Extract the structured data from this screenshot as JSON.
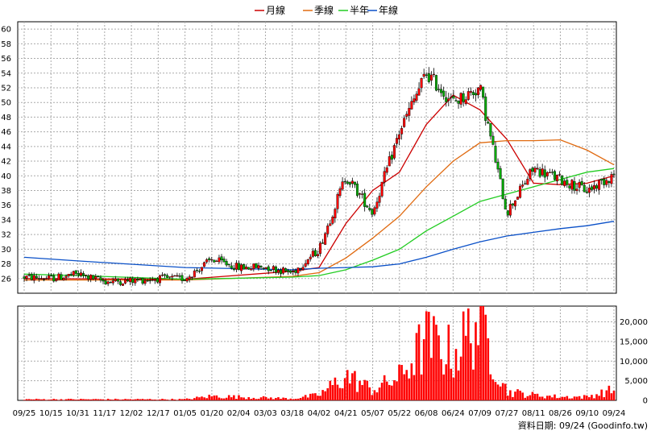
{
  "chart_data": {
    "type": "candlestick",
    "legend": [
      {
        "name": "月線",
        "color": "#cc0000"
      },
      {
        "name": "季線",
        "color": "#e06a10"
      },
      {
        "name": "半年",
        "color": "#22cc22"
      },
      {
        "name": "年線",
        "color": "#0a50c8"
      }
    ],
    "price_axis": {
      "min": 24,
      "max": 61,
      "ticks": [
        26,
        28,
        30,
        32,
        34,
        36,
        38,
        40,
        42,
        44,
        46,
        48,
        50,
        52,
        54,
        56,
        58,
        60
      ]
    },
    "volume_axis": {
      "min": 0,
      "max": 24000,
      "ticks": [
        0,
        5000,
        10000,
        15000,
        20000
      ],
      "tick_labels": [
        "0",
        "5,000",
        "10,000",
        "15,000",
        "20,000"
      ]
    },
    "x_tick_labels": [
      "09/25",
      "10/15",
      "10/31",
      "11/17",
      "12/02",
      "12/17",
      "01/05",
      "01/20",
      "02/04",
      "03/03",
      "03/18",
      "04/02",
      "04/21",
      "05/07",
      "05/22",
      "06/08",
      "06/24",
      "07/09",
      "07/27",
      "08/11",
      "08/26",
      "09/10",
      "09/24"
    ],
    "price_keyframes": [
      {
        "x": "09/25",
        "close": 26.2
      },
      {
        "x": "10/15",
        "close": 26.0
      },
      {
        "x": "10/31",
        "close": 26.6
      },
      {
        "x": "11/17",
        "close": 25.6
      },
      {
        "x": "12/02",
        "close": 25.7
      },
      {
        "x": "12/17",
        "close": 26.0
      },
      {
        "x": "01/05",
        "close": 26.0
      },
      {
        "x": "01/20",
        "close": 28.6
      },
      {
        "x": "02/04",
        "close": 27.5
      },
      {
        "x": "03/03",
        "close": 27.6
      },
      {
        "x": "03/18",
        "close": 26.8
      },
      {
        "x": "04/02",
        "close": 30.0
      },
      {
        "x": "04/21",
        "close": 40.0
      },
      {
        "x": "05/07",
        "close": 35.0
      },
      {
        "x": "05/22",
        "close": 46.0
      },
      {
        "x": "06/08",
        "close": 54.0
      },
      {
        "x": "06/24",
        "close": 50.0
      },
      {
        "x": "07/09",
        "close": 52.0
      },
      {
        "x": "07/27",
        "close": 35.0
      },
      {
        "x": "08/11",
        "close": 41.0
      },
      {
        "x": "08/26",
        "close": 39.5
      },
      {
        "x": "09/10",
        "close": 38.0
      },
      {
        "x": "09/24",
        "close": 40.2
      }
    ],
    "moving_averages": {
      "月線": [
        {
          "x": "09/25",
          "y": 26.0
        },
        {
          "x": "01/05",
          "y": 25.9
        },
        {
          "x": "03/18",
          "y": 27.0
        },
        {
          "x": "04/02",
          "y": 27.5
        },
        {
          "x": "04/21",
          "y": 33.5
        },
        {
          "x": "05/07",
          "y": 38.0
        },
        {
          "x": "05/22",
          "y": 40.5
        },
        {
          "x": "06/08",
          "y": 47.0
        },
        {
          "x": "06/24",
          "y": 51.0
        },
        {
          "x": "07/09",
          "y": 49.0
        },
        {
          "x": "07/27",
          "y": 45.0
        },
        {
          "x": "08/11",
          "y": 39.0
        },
        {
          "x": "08/26",
          "y": 38.8
        },
        {
          "x": "09/10",
          "y": 39.0
        },
        {
          "x": "09/24",
          "y": 40.0
        }
      ],
      "季線": [
        {
          "x": "09/25",
          "y": 25.8
        },
        {
          "x": "01/05",
          "y": 25.8
        },
        {
          "x": "03/18",
          "y": 26.3
        },
        {
          "x": "04/02",
          "y": 26.8
        },
        {
          "x": "04/21",
          "y": 28.8
        },
        {
          "x": "05/07",
          "y": 31.5
        },
        {
          "x": "05/22",
          "y": 34.5
        },
        {
          "x": "06/08",
          "y": 38.5
        },
        {
          "x": "06/24",
          "y": 42.0
        },
        {
          "x": "07/09",
          "y": 44.5
        },
        {
          "x": "07/27",
          "y": 44.8
        },
        {
          "x": "08/11",
          "y": 44.8
        },
        {
          "x": "08/26",
          "y": 44.9
        },
        {
          "x": "09/10",
          "y": 43.5
        },
        {
          "x": "09/24",
          "y": 41.5
        }
      ],
      "半年": [
        {
          "x": "09/25",
          "y": 26.6
        },
        {
          "x": "10/31",
          "y": 26.4
        },
        {
          "x": "01/05",
          "y": 25.9
        },
        {
          "x": "03/18",
          "y": 26.2
        },
        {
          "x": "04/02",
          "y": 26.4
        },
        {
          "x": "04/21",
          "y": 27.2
        },
        {
          "x": "05/07",
          "y": 28.5
        },
        {
          "x": "05/22",
          "y": 30.0
        },
        {
          "x": "06/08",
          "y": 32.5
        },
        {
          "x": "06/24",
          "y": 34.5
        },
        {
          "x": "07/09",
          "y": 36.5
        },
        {
          "x": "07/27",
          "y": 37.5
        },
        {
          "x": "08/11",
          "y": 38.5
        },
        {
          "x": "08/26",
          "y": 39.5
        },
        {
          "x": "09/10",
          "y": 40.5
        },
        {
          "x": "09/24",
          "y": 41.0
        }
      ],
      "年線": [
        {
          "x": "09/25",
          "y": 28.9
        },
        {
          "x": "10/31",
          "y": 28.4
        },
        {
          "x": "01/05",
          "y": 27.5
        },
        {
          "x": "03/18",
          "y": 27.2
        },
        {
          "x": "04/02",
          "y": 27.4
        },
        {
          "x": "04/21",
          "y": 27.5
        },
        {
          "x": "05/07",
          "y": 27.6
        },
        {
          "x": "05/22",
          "y": 28.0
        },
        {
          "x": "06/08",
          "y": 28.9
        },
        {
          "x": "06/24",
          "y": 30.0
        },
        {
          "x": "07/09",
          "y": 31.0
        },
        {
          "x": "07/27",
          "y": 31.8
        },
        {
          "x": "08/11",
          "y": 32.3
        },
        {
          "x": "08/26",
          "y": 32.8
        },
        {
          "x": "09/10",
          "y": 33.2
        },
        {
          "x": "09/24",
          "y": 33.8
        }
      ]
    },
    "volume_keyframes": [
      {
        "x": "09/25",
        "v": 300
      },
      {
        "x": "01/05",
        "v": 300
      },
      {
        "x": "01/20",
        "v": 1200
      },
      {
        "x": "03/18",
        "v": 500
      },
      {
        "x": "04/02",
        "v": 1500
      },
      {
        "x": "04/21",
        "v": 7000
      },
      {
        "x": "05/07",
        "v": 3000
      },
      {
        "x": "05/22",
        "v": 6500
      },
      {
        "x": "06/08",
        "v": 17000
      },
      {
        "x": "06/24",
        "v": 13000
      },
      {
        "x": "07/09",
        "v": 23000
      },
      {
        "x": "07/27",
        "v": 2500
      },
      {
        "x": "08/11",
        "v": 1500
      },
      {
        "x": "08/26",
        "v": 1000
      },
      {
        "x": "09/10",
        "v": 1000
      },
      {
        "x": "09/24",
        "v": 3000
      }
    ],
    "grid": true
  },
  "footer": {
    "text": "資料日期: 09/24  (Goodinfo.tw)"
  },
  "colors": {
    "up": "#ff0000",
    "down": "#00aa00",
    "volume": "#ff0000",
    "grid": "#aaaaaa"
  }
}
